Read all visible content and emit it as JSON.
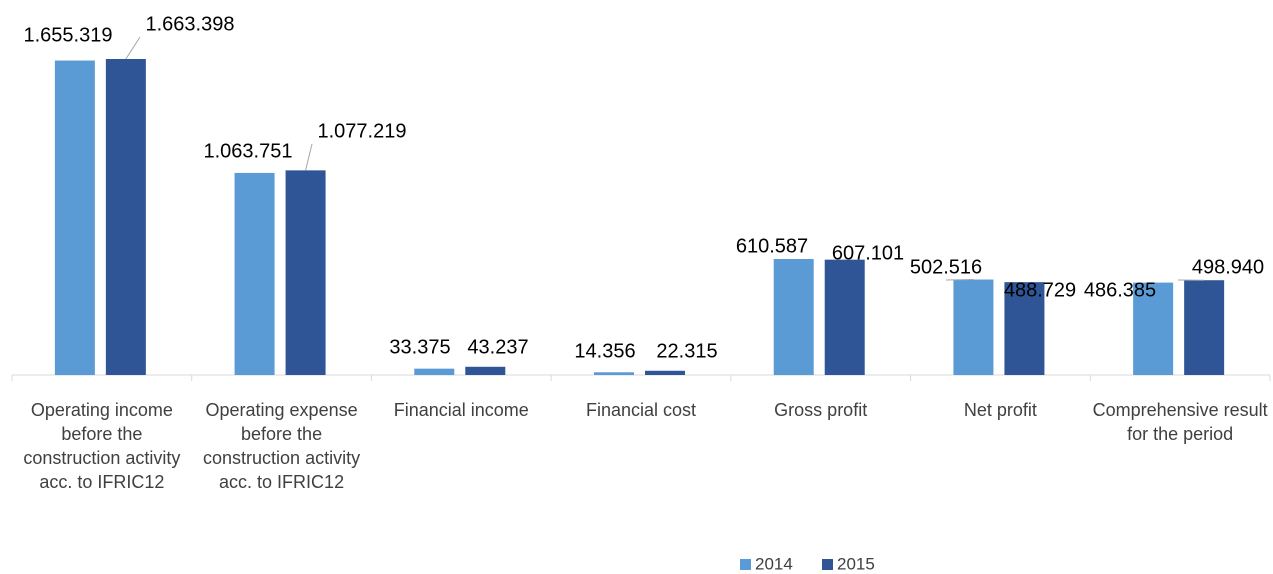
{
  "chart_data": {
    "type": "bar",
    "categories": [
      "Operating income before the construction activity acc. to IFRIC12",
      "Operating expense before the construction activity acc. to IFRIC12",
      "Financial income",
      "Financial cost",
      "Gross profit",
      "Net profit",
      "Comprehensive result for the period"
    ],
    "series": [
      {
        "name": "2014",
        "color": "#5b9bd5",
        "values": [
          1655319,
          1063751,
          33375,
          14356,
          610587,
          502516,
          486385
        ],
        "value_labels": [
          "1.655.319",
          "1.063.751",
          "33.375",
          "14.356",
          "610.587",
          "502.516",
          "486.385"
        ]
      },
      {
        "name": "2015",
        "color": "#2f5597",
        "values": [
          1663398,
          1077219,
          43237,
          22315,
          607101,
          488729,
          498940
        ],
        "value_labels": [
          "1.663.398",
          "1.077.219",
          "43.237",
          "22.315",
          "607.101",
          "488.729",
          "498.940"
        ]
      }
    ],
    "legend": "bottom"
  }
}
